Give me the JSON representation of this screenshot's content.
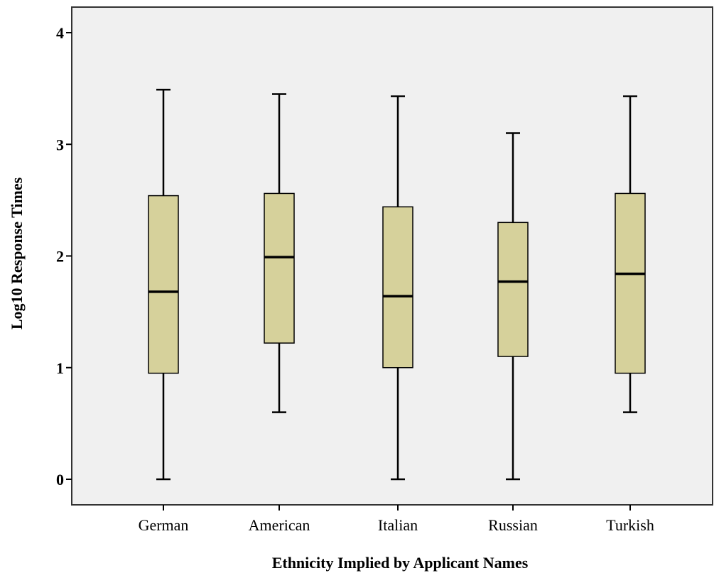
{
  "chart_data": {
    "type": "boxplot",
    "xlabel": "Ethnicity Implied by Applicant Names",
    "ylabel": "Log10 Response Times",
    "ylim": [
      -0.2,
      4.2
    ],
    "yticks": [
      "0",
      "1",
      "2",
      "3",
      "4"
    ],
    "grid": false,
    "colors": {
      "box_fill": "#d6d19b",
      "plot_bg": "#f0f0f0",
      "stroke": "#000000"
    },
    "categories": [
      "German",
      "American",
      "Italian",
      "Russian",
      "Turkish"
    ],
    "boxes": [
      {
        "min": 0.0,
        "q1": 0.95,
        "median": 1.68,
        "q3": 2.54,
        "max": 3.49
      },
      {
        "min": 0.6,
        "q1": 1.22,
        "median": 1.99,
        "q3": 2.56,
        "max": 3.45
      },
      {
        "min": 0.0,
        "q1": 1.0,
        "median": 1.64,
        "q3": 2.44,
        "max": 3.43
      },
      {
        "min": 0.0,
        "q1": 1.1,
        "median": 1.77,
        "q3": 2.3,
        "max": 3.1
      },
      {
        "min": 0.6,
        "q1": 0.95,
        "median": 1.84,
        "q3": 2.56,
        "max": 3.43
      }
    ]
  }
}
